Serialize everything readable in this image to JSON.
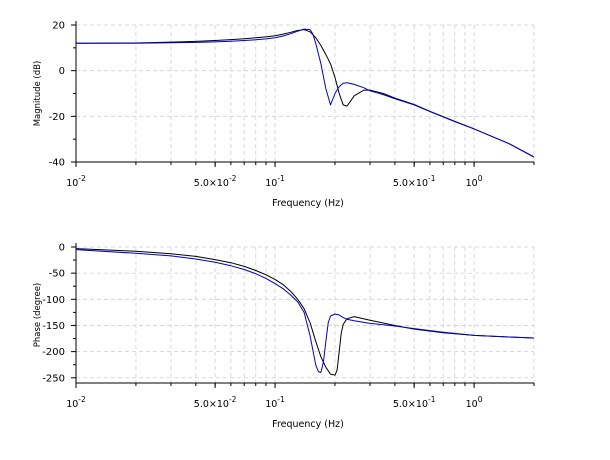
{
  "chart_data": [
    {
      "type": "line",
      "xscale": "log",
      "xlim": [
        0.01,
        2
      ],
      "ylim": [
        -40,
        20
      ],
      "grid": true,
      "xlabel": "Frequency (Hz)",
      "ylabel": "Magnitude (dB)",
      "xticks": [
        {
          "value": 0.01,
          "base": "10",
          "exp": "-2"
        },
        {
          "value": 0.05,
          "base": "5.0×10",
          "exp": "-2"
        },
        {
          "value": 0.1,
          "base": "10",
          "exp": "-1"
        },
        {
          "value": 0.5,
          "base": "5.0×10",
          "exp": "-1"
        },
        {
          "value": 1,
          "base": "10",
          "exp": "0"
        }
      ],
      "yticks": [
        20,
        0,
        -20,
        -40
      ],
      "series": [
        {
          "color": "#000000",
          "x": [
            0.01,
            0.02,
            0.03,
            0.04,
            0.05,
            0.06,
            0.07,
            0.08,
            0.09,
            0.1,
            0.11,
            0.12,
            0.13,
            0.14,
            0.15,
            0.16,
            0.17,
            0.18,
            0.19,
            0.2,
            0.21,
            0.22,
            0.23,
            0.25,
            0.28,
            0.3,
            0.35,
            0.4,
            0.5,
            0.6,
            0.8,
            1.0,
            1.5,
            2.0
          ],
          "y": [
            12,
            12.1,
            12.5,
            12.8,
            13.2,
            13.6,
            14.0,
            14.4,
            14.8,
            15.3,
            16.0,
            16.8,
            17.6,
            18.0,
            17.0,
            14.5,
            11.0,
            7.0,
            3.0,
            -3.0,
            -10.0,
            -15.0,
            -15.5,
            -11.0,
            -8.5,
            -8.5,
            -10.0,
            -12.0,
            -14.8,
            -17.8,
            -22.2,
            -25.5,
            -32.0,
            -37.8
          ]
        },
        {
          "color": "#0000cc",
          "x": [
            0.01,
            0.02,
            0.03,
            0.04,
            0.05,
            0.06,
            0.07,
            0.08,
            0.09,
            0.1,
            0.11,
            0.12,
            0.13,
            0.14,
            0.15,
            0.155,
            0.16,
            0.17,
            0.18,
            0.19,
            0.2,
            0.21,
            0.22,
            0.23,
            0.25,
            0.28,
            0.3,
            0.35,
            0.4,
            0.5,
            0.6,
            0.8,
            1.0,
            1.5,
            2.0
          ],
          "y": [
            12,
            12.0,
            12.2,
            12.4,
            12.6,
            12.9,
            13.2,
            13.5,
            13.9,
            14.4,
            15.2,
            16.2,
            17.3,
            18.2,
            18.0,
            16.0,
            12.0,
            3.0,
            -8.0,
            -15.0,
            -10.0,
            -7.0,
            -5.5,
            -5.3,
            -6.0,
            -7.5,
            -8.8,
            -10.5,
            -12.3,
            -15.0,
            -17.9,
            -22.3,
            -25.5,
            -32.0,
            -37.8
          ]
        }
      ]
    },
    {
      "type": "line",
      "xscale": "log",
      "xlim": [
        0.01,
        2
      ],
      "ylim": [
        -260,
        0
      ],
      "grid": true,
      "xlabel": "Frequency (Hz)",
      "ylabel": "Phase (degree)",
      "xticks": [
        {
          "value": 0.01,
          "base": "10",
          "exp": "-2"
        },
        {
          "value": 0.05,
          "base": "5.0×10",
          "exp": "-2"
        },
        {
          "value": 0.1,
          "base": "10",
          "exp": "-1"
        },
        {
          "value": 0.5,
          "base": "5.0×10",
          "exp": "-1"
        },
        {
          "value": 1,
          "base": "10",
          "exp": "0"
        }
      ],
      "yticks": [
        0,
        -50,
        -100,
        -150,
        -200,
        -250
      ],
      "series": [
        {
          "color": "#000000",
          "x": [
            0.01,
            0.02,
            0.03,
            0.04,
            0.05,
            0.06,
            0.07,
            0.08,
            0.09,
            0.1,
            0.11,
            0.12,
            0.13,
            0.14,
            0.15,
            0.16,
            0.17,
            0.18,
            0.19,
            0.2,
            0.205,
            0.21,
            0.215,
            0.22,
            0.23,
            0.25,
            0.3,
            0.4,
            0.5,
            0.7,
            1.0,
            1.5,
            2.0
          ],
          "y": [
            -3,
            -8,
            -13,
            -18,
            -24,
            -30,
            -37,
            -45,
            -53,
            -62,
            -72,
            -85,
            -100,
            -118,
            -145,
            -180,
            -210,
            -230,
            -243,
            -245,
            -235,
            -200,
            -165,
            -148,
            -137,
            -133,
            -140,
            -150,
            -157,
            -164,
            -169,
            -172,
            -174
          ]
        },
        {
          "color": "#0000cc",
          "x": [
            0.01,
            0.02,
            0.03,
            0.04,
            0.05,
            0.06,
            0.07,
            0.08,
            0.09,
            0.1,
            0.11,
            0.12,
            0.13,
            0.14,
            0.15,
            0.16,
            0.165,
            0.17,
            0.175,
            0.18,
            0.185,
            0.19,
            0.2,
            0.21,
            0.22,
            0.23,
            0.25,
            0.3,
            0.4,
            0.5,
            0.7,
            1.0,
            1.5,
            2.0
          ],
          "y": [
            -5,
            -12,
            -17,
            -23,
            -29,
            -36,
            -43,
            -51,
            -60,
            -70,
            -80,
            -92,
            -105,
            -125,
            -170,
            -225,
            -238,
            -240,
            -220,
            -180,
            -145,
            -132,
            -128,
            -130,
            -135,
            -138,
            -141,
            -146,
            -151,
            -156,
            -163,
            -169,
            -172,
            -174
          ]
        }
      ]
    }
  ]
}
